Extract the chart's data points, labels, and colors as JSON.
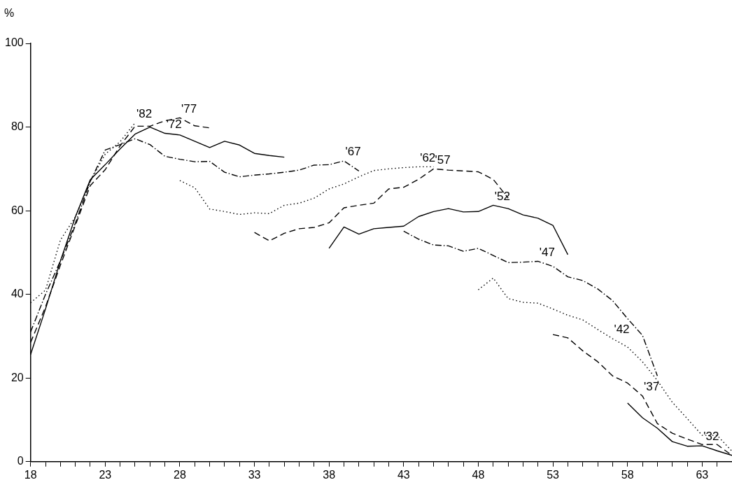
{
  "chart_data": {
    "type": "line",
    "ylabel": "%",
    "xlim": [
      18,
      65
    ],
    "ylim": [
      0,
      100
    ],
    "xticks": [
      18,
      {
        "value": 19,
        "label": null
      },
      {
        "value": 20,
        "label": null
      },
      {
        "value": 21,
        "label": null
      },
      {
        "value": 22,
        "label": null
      },
      23,
      {
        "value": 24,
        "label": null
      },
      {
        "value": 25,
        "label": null
      },
      {
        "value": 26,
        "label": null
      },
      {
        "value": 27,
        "label": null
      },
      28,
      {
        "value": 29,
        "label": null
      },
      {
        "value": 30,
        "label": null
      },
      {
        "value": 31,
        "label": null
      },
      {
        "value": 32,
        "label": null
      },
      33,
      {
        "value": 34,
        "label": null
      },
      {
        "value": 35,
        "label": null
      },
      {
        "value": 36,
        "label": null
      },
      {
        "value": 37,
        "label": null
      },
      38,
      {
        "value": 39,
        "label": null
      },
      {
        "value": 40,
        "label": null
      },
      {
        "value": 41,
        "label": null
      },
      {
        "value": 42,
        "label": null
      },
      43,
      {
        "value": 44,
        "label": null
      },
      {
        "value": 45,
        "label": null
      },
      {
        "value": 46,
        "label": null
      },
      {
        "value": 47,
        "label": null
      },
      48,
      {
        "value": 49,
        "label": null
      },
      {
        "value": 50,
        "label": null
      },
      {
        "value": 51,
        "label": null
      },
      {
        "value": 52,
        "label": null
      },
      53,
      {
        "value": 54,
        "label": null
      },
      {
        "value": 55,
        "label": null
      },
      {
        "value": 56,
        "label": null
      },
      {
        "value": 57,
        "label": null
      },
      58,
      {
        "value": 59,
        "label": null
      },
      {
        "value": 60,
        "label": null
      },
      {
        "value": 61,
        "label": null
      },
      {
        "value": 62,
        "label": null
      },
      63,
      {
        "value": 64,
        "label": null
      }
    ],
    "yticks": [
      0,
      20,
      40,
      60,
      80,
      100
    ],
    "grid": false,
    "legend": false,
    "marker": "none",
    "series": [
      {
        "name": "'82",
        "color": "#000000",
        "line_style": "dotted",
        "x": [
          18,
          19,
          20,
          21,
          22,
          23,
          24,
          25
        ],
        "values": [
          38,
          41,
          53,
          58.5,
          67,
          73.5,
          76.5,
          81
        ]
      },
      {
        "name": "'77",
        "color": "#000000",
        "line_style": "dashed",
        "x": [
          18,
          19,
          20,
          21,
          22,
          23,
          24,
          25,
          26,
          27,
          28,
          29,
          30
        ],
        "values": [
          28.5,
          37,
          47,
          56.5,
          66,
          69.8,
          75.5,
          80.2,
          80.2,
          81.5,
          82.2,
          80.3,
          79.8
        ]
      },
      {
        "name": "'72",
        "color": "#000000",
        "line_style": "solid",
        "x": [
          18,
          19,
          20,
          21,
          22,
          23,
          24,
          25,
          26,
          27,
          28,
          29,
          30,
          31,
          32,
          33,
          34,
          35
        ],
        "values": [
          25.6,
          36.5,
          48,
          58.5,
          67.4,
          71,
          74.8,
          78.3,
          80,
          78.5,
          78.1,
          76.6,
          75.1,
          76.6,
          75.7,
          73.7,
          73.2,
          72.8
        ]
      },
      {
        "name": "'67",
        "color": "#000000",
        "line_style": "dashdot",
        "x": [
          18,
          19,
          20,
          21,
          22,
          23,
          24,
          25,
          26,
          27,
          28,
          29,
          30,
          31,
          32,
          33,
          34,
          35,
          36,
          37,
          38,
          39,
          40
        ],
        "values": [
          31,
          40,
          48,
          57,
          67,
          74.5,
          75.8,
          77.2,
          75.8,
          73,
          72.3,
          71.7,
          71.8,
          69.2,
          68.1,
          68.5,
          68.8,
          69.2,
          69.7,
          70.9,
          71,
          71.9,
          69.5
        ]
      },
      {
        "name": "'62",
        "color": "#000000",
        "line_style": "dotted",
        "x": [
          28,
          29,
          30,
          31,
          32,
          33,
          34,
          35,
          36,
          37,
          38,
          39,
          40,
          41,
          42,
          43,
          44,
          45
        ],
        "values": [
          67.2,
          65.5,
          60.4,
          59.8,
          59.1,
          59.5,
          59.3,
          61.3,
          61.8,
          63,
          65.2,
          66.4,
          68.1,
          69.6,
          70,
          70.3,
          70.5,
          70.5
        ]
      },
      {
        "name": "'57",
        "color": "#000000",
        "line_style": "dashed",
        "x": [
          33,
          34,
          35,
          36,
          37,
          38,
          39,
          40,
          41,
          42,
          43,
          44,
          45,
          46,
          47,
          48,
          49,
          50
        ],
        "values": [
          54.8,
          52.8,
          54.6,
          55.7,
          56,
          57.1,
          60.7,
          61.3,
          61.8,
          65.2,
          65.6,
          67.5,
          70,
          69.7,
          69.5,
          69.3,
          67.5,
          63
        ]
      },
      {
        "name": "'52",
        "color": "#000000",
        "line_style": "solid",
        "x": [
          38,
          39,
          40,
          41,
          42,
          43,
          44,
          45,
          46,
          47,
          48,
          49,
          50,
          51,
          52,
          53,
          54
        ],
        "values": [
          51,
          56.1,
          54.4,
          55.7,
          56,
          56.3,
          58.6,
          59.8,
          60.5,
          59.7,
          59.8,
          61.3,
          60.5,
          59,
          58.2,
          56.5,
          49.5
        ]
      },
      {
        "name": "'47",
        "color": "#000000",
        "line_style": "dashdot",
        "x": [
          43,
          44,
          45,
          46,
          47,
          48,
          49,
          50,
          51,
          52,
          53,
          54,
          55,
          56,
          57,
          58,
          59,
          60
        ],
        "values": [
          55.1,
          53.2,
          51.8,
          51.6,
          50.3,
          51,
          49.3,
          47.6,
          47.7,
          47.9,
          46.7,
          44.2,
          43.3,
          41.3,
          38.5,
          34.2,
          30.2,
          20.5
        ]
      },
      {
        "name": "'42",
        "color": "#000000",
        "line_style": "dotted",
        "x": [
          48,
          49,
          50,
          51,
          52,
          53,
          54,
          55,
          56,
          57,
          58,
          59,
          60,
          61,
          62,
          63,
          64,
          65
        ],
        "values": [
          41.1,
          43.9,
          39,
          38.1,
          37.9,
          36.5,
          35,
          33.9,
          31.6,
          29.4,
          27.4,
          23.9,
          19.4,
          14.2,
          10.3,
          6.3,
          6.3,
          2.5
        ]
      },
      {
        "name": "'37",
        "color": "#000000",
        "line_style": "dashed",
        "x": [
          53,
          54,
          55,
          56,
          57,
          58,
          59,
          60,
          61,
          62,
          63,
          64,
          65
        ],
        "values": [
          30.4,
          29.6,
          26.5,
          23.9,
          20.5,
          18.8,
          15.7,
          9.1,
          6.8,
          5.4,
          4.1,
          4.1,
          1.5
        ]
      },
      {
        "name": "'32",
        "color": "#000000",
        "line_style": "solid",
        "x": [
          58,
          59,
          60,
          61,
          62,
          63,
          64,
          65
        ],
        "values": [
          14,
          10.5,
          8,
          4.8,
          3.7,
          3.8,
          2.6,
          1.5
        ]
      }
    ]
  }
}
